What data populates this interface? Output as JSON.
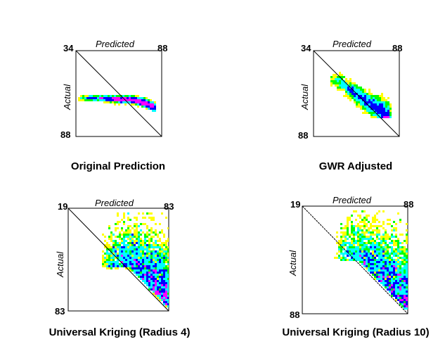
{
  "chart_data": [
    {
      "type": "heatmap",
      "title": "Original Prediction",
      "xlabel": "Predicted",
      "ylabel": "Actual",
      "xlim": [
        34,
        88
      ],
      "ylim": [
        34,
        88
      ],
      "tick_labels": {
        "top_left": "34",
        "top_right": "88",
        "bottom_left": "88"
      },
      "reference_line": "1:1 diagonal (Actual = Predicted)",
      "density_ridge": {
        "x": [
          38,
          50,
          60,
          70,
          78,
          84
        ],
        "y": [
          64,
          64,
          64.5,
          65,
          67,
          70
        ]
      },
      "point_extent": {
        "x": [
          36,
          84
        ],
        "y": [
          62,
          72
        ]
      }
    },
    {
      "type": "heatmap",
      "title": "GWR Adjusted",
      "xlabel": "Predicted",
      "ylabel": "Actual",
      "xlim": [
        34,
        88
      ],
      "ylim": [
        34,
        88
      ],
      "tick_labels": {
        "top_left": "34",
        "top_right": "88",
        "bottom_left": "88"
      },
      "reference_line": "1:1 diagonal (Actual = Predicted)",
      "density_ridge": {
        "x": [
          50,
          56,
          62,
          68,
          74,
          80
        ],
        "y": [
          53,
          58,
          62,
          67,
          70,
          74
        ]
      },
      "point_extent": {
        "x": [
          44,
          82
        ],
        "y": [
          46,
          76
        ]
      }
    },
    {
      "type": "heatmap",
      "title": "Universal Kriging (Radius 4)",
      "xlabel": "Predicted",
      "ylabel": "Actual",
      "xlim": [
        19,
        83
      ],
      "ylim": [
        19,
        83
      ],
      "tick_labels": {
        "top_left": "19",
        "top_right": "83",
        "bottom_left": "83"
      },
      "reference_line": "1:1 diagonal (Actual = Predicted)",
      "density_ridge": {
        "x": [
          58,
          64,
          70,
          74,
          78,
          82
        ],
        "y": [
          56,
          62,
          68,
          72,
          76,
          81
        ]
      },
      "point_extent": {
        "x": [
          40,
          83
        ],
        "y": [
          22,
          83
        ]
      }
    },
    {
      "type": "heatmap",
      "title": "Universal Kriging (Radius 10)",
      "xlabel": "Predicted",
      "ylabel": "Actual",
      "xlim": [
        19,
        88
      ],
      "ylim": [
        19,
        88
      ],
      "tick_labels": {
        "top_left": "19",
        "top_right": "88",
        "bottom_left": "88"
      },
      "reference_line": "1:1 diagonal (Actual = Predicted)",
      "density_ridge": {
        "x": [
          56,
          62,
          68,
          74,
          80,
          86
        ],
        "y": [
          54,
          60,
          66,
          72,
          78,
          85
        ]
      },
      "point_extent": {
        "x": [
          40,
          88
        ],
        "y": [
          22,
          88
        ]
      }
    }
  ],
  "colormap": [
    "#ff0000",
    "#ffff00",
    "#00ff00",
    "#00ffff",
    "#0000ff",
    "#ff00ff"
  ]
}
